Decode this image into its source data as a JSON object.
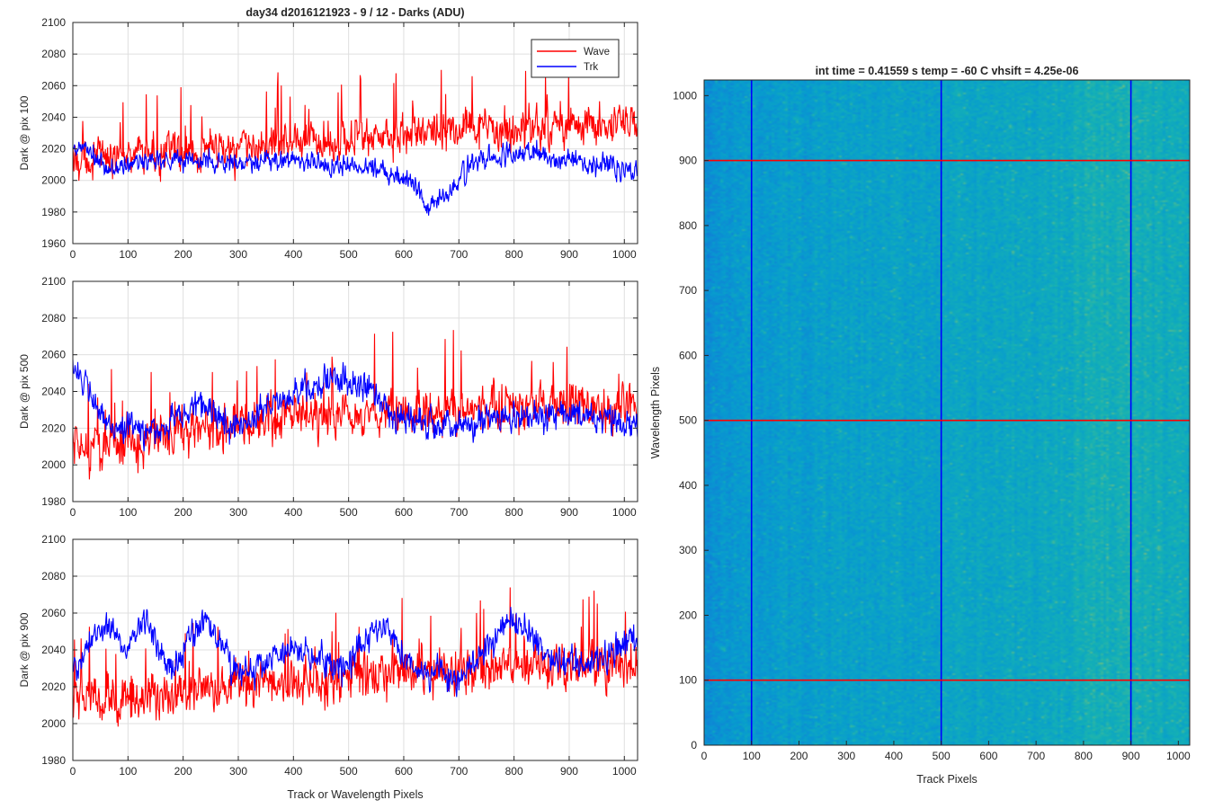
{
  "figure": {
    "title": "day34 d2016121923 - 9 / 12 - Darks (ADU)"
  },
  "chart_data": [
    {
      "type": "line",
      "ylabel": "Dark @ pix 100",
      "xlabel": "",
      "xlim": [
        0,
        1024
      ],
      "ylim": [
        1960,
        2100
      ],
      "xticks": [
        0,
        100,
        200,
        300,
        400,
        500,
        600,
        700,
        800,
        900,
        1000
      ],
      "yticks": [
        1960,
        1980,
        2000,
        2020,
        2040,
        2060,
        2080,
        2100
      ],
      "grid": true,
      "legend": "top-right",
      "series": [
        {
          "name": "Wave",
          "color": "#ff0000",
          "noise": 9,
          "spike": 0.045,
          "trend": [
            [
              0,
              2013
            ],
            [
              150,
              2018
            ],
            [
              300,
              2020
            ],
            [
              400,
              2024
            ],
            [
              550,
              2028
            ],
            [
              700,
              2032
            ],
            [
              800,
              2032
            ],
            [
              900,
              2036
            ],
            [
              1024,
              2034
            ]
          ]
        },
        {
          "name": "Trk",
          "color": "#0000ff",
          "noise": 5,
          "spike": 0.0,
          "trend": [
            [
              0,
              2016
            ],
            [
              20,
              2022
            ],
            [
              60,
              2006
            ],
            [
              150,
              2014
            ],
            [
              250,
              2012
            ],
            [
              320,
              2010
            ],
            [
              400,
              2014
            ],
            [
              450,
              2010
            ],
            [
              560,
              2008
            ],
            [
              620,
              1998
            ],
            [
              645,
              1985
            ],
            [
              680,
              1990
            ],
            [
              720,
              2010
            ],
            [
              780,
              2016
            ],
            [
              830,
              2018
            ],
            [
              900,
              2012
            ],
            [
              980,
              2010
            ],
            [
              1024,
              2006
            ]
          ]
        }
      ]
    },
    {
      "type": "line",
      "ylabel": "Dark @ pix 500",
      "xlabel": "",
      "xlim": [
        0,
        1024
      ],
      "ylim": [
        1980,
        2100
      ],
      "xticks": [
        0,
        100,
        200,
        300,
        400,
        500,
        600,
        700,
        800,
        900,
        1000
      ],
      "yticks": [
        1980,
        2000,
        2020,
        2040,
        2060,
        2080,
        2100
      ],
      "grid": true,
      "series": [
        {
          "name": "Wave",
          "color": "#ff0000",
          "noise": 9,
          "spike": 0.045,
          "trend": [
            [
              0,
              2008
            ],
            [
              100,
              2012
            ],
            [
              200,
              2018
            ],
            [
              300,
              2022
            ],
            [
              400,
              2024
            ],
            [
              500,
              2026
            ],
            [
              600,
              2028
            ],
            [
              700,
              2030
            ],
            [
              850,
              2032
            ],
            [
              1024,
              2030
            ]
          ]
        },
        {
          "name": "Trk",
          "color": "#0000ff",
          "noise": 6,
          "spike": 0.0,
          "trend": [
            [
              0,
              2058
            ],
            [
              25,
              2040
            ],
            [
              60,
              2022
            ],
            [
              150,
              2018
            ],
            [
              230,
              2034
            ],
            [
              290,
              2020
            ],
            [
              380,
              2036
            ],
            [
              460,
              2046
            ],
            [
              530,
              2044
            ],
            [
              600,
              2024
            ],
            [
              700,
              2022
            ],
            [
              800,
              2024
            ],
            [
              900,
              2028
            ],
            [
              1024,
              2020
            ]
          ]
        }
      ]
    },
    {
      "type": "line",
      "ylabel": "Dark @ pix 900",
      "xlabel": "Track or Wavelength Pixels",
      "xlim": [
        0,
        1024
      ],
      "ylim": [
        1980,
        2100
      ],
      "xticks": [
        0,
        100,
        200,
        300,
        400,
        500,
        600,
        700,
        800,
        900,
        1000
      ],
      "yticks": [
        1980,
        2000,
        2020,
        2040,
        2060,
        2080,
        2100
      ],
      "grid": true,
      "series": [
        {
          "name": "Wave",
          "color": "#ff0000",
          "noise": 9,
          "spike": 0.045,
          "trend": [
            [
              0,
              2014
            ],
            [
              100,
              2012
            ],
            [
              200,
              2018
            ],
            [
              300,
              2020
            ],
            [
              400,
              2022
            ],
            [
              500,
              2025
            ],
            [
              600,
              2028
            ],
            [
              700,
              2028
            ],
            [
              800,
              2032
            ],
            [
              900,
              2032
            ],
            [
              1024,
              2030
            ]
          ]
        },
        {
          "name": "Trk",
          "color": "#0000ff",
          "noise": 6,
          "spike": 0.0,
          "trend": [
            [
              0,
              2028
            ],
            [
              60,
              2055
            ],
            [
              100,
              2040
            ],
            [
              130,
              2058
            ],
            [
              180,
              2030
            ],
            [
              240,
              2058
            ],
            [
              300,
              2025
            ],
            [
              350,
              2034
            ],
            [
              420,
              2040
            ],
            [
              480,
              2028
            ],
            [
              560,
              2056
            ],
            [
              620,
              2030
            ],
            [
              700,
              2022
            ],
            [
              750,
              2040
            ],
            [
              800,
              2058
            ],
            [
              880,
              2032
            ],
            [
              960,
              2036
            ],
            [
              1024,
              2048
            ]
          ]
        }
      ]
    },
    {
      "type": "heatmap",
      "title": "int time = 0.41559 s    temp = -60 C    vhsift = 4.25e-06",
      "xlabel": "Track Pixels",
      "ylabel": "Wavelength Pixels",
      "xlim": [
        0,
        1024
      ],
      "ylim": [
        0,
        1024
      ],
      "xticks": [
        0,
        100,
        200,
        300,
        400,
        500,
        600,
        700,
        800,
        900,
        1000
      ],
      "yticks": [
        0,
        100,
        200,
        300,
        400,
        500,
        600,
        700,
        800,
        900,
        1000
      ],
      "colormap": "parula",
      "vertical_markers": {
        "values": [
          100,
          500,
          900
        ],
        "color": "#0000ff"
      },
      "horizontal_markers": {
        "values": [
          100,
          500,
          900
        ],
        "color": "#ff0000"
      }
    }
  ]
}
